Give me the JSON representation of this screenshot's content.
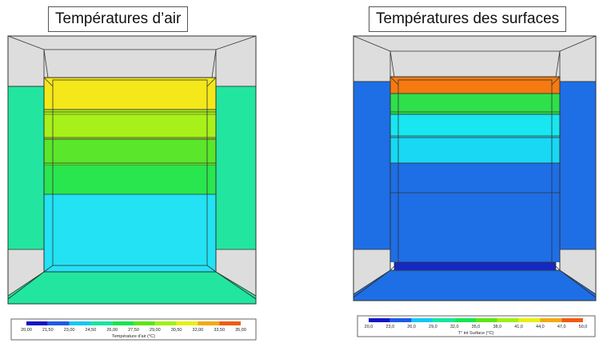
{
  "left_panel": {
    "title": "Températures d’air",
    "legend": {
      "label": "Température d'air (°C)",
      "ticks": [
        "20,00",
        "21,50",
        "23,00",
        "24,50",
        "26,00",
        "27,50",
        "29,00",
        "30,50",
        "32,00",
        "33,50",
        "35,00"
      ],
      "colors": [
        "#1414c8",
        "#1e5ae6",
        "#14c8f0",
        "#14e6a0",
        "#14e650",
        "#5ae614",
        "#a0f014",
        "#e6f014",
        "#f0aa14",
        "#f05a14",
        "#dc1414"
      ]
    },
    "zones": {
      "top_wall": "#dddddd",
      "side_walls": "#22e6a0",
      "floor": "#22e6a0",
      "back_band_1": "#f4e81a",
      "back_band_2": "#a8f01a",
      "back_band_3": "#5ae62a",
      "back_band_4": "#2ae64e",
      "back_lower": "#22e2f4"
    }
  },
  "right_panel": {
    "title": "Températures des surfaces",
    "legend": {
      "label": "T° int Surface (°C)",
      "ticks": [
        "20,0",
        "23,0",
        "26,0",
        "29,0",
        "32,0",
        "35,0",
        "38,0",
        "41,0",
        "44,0",
        "47,0",
        "50,0"
      ],
      "colors": [
        "#1414c8",
        "#1e5ae6",
        "#14c8f0",
        "#14e6a0",
        "#14e650",
        "#5ae614",
        "#a0f014",
        "#e6f014",
        "#f0aa14",
        "#f05a14",
        "#dc1414"
      ]
    },
    "zones": {
      "top_wall": "#dddddd",
      "side_walls": "#1e6ee6",
      "floor": "#1e6ee6",
      "back_band_1": "#f57a10",
      "back_band_2": "#2ee04a",
      "back_band_3": "#18e6f0",
      "back_band_4": "#18d8f4",
      "back_lower": "#1e6ee6",
      "back_bottom_strip": "#1428c8"
    }
  }
}
